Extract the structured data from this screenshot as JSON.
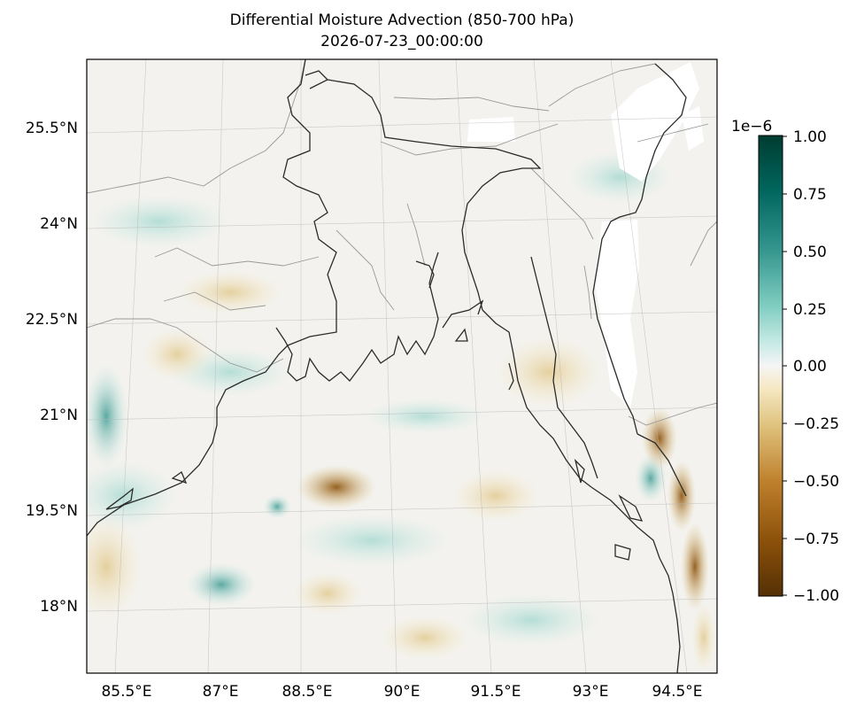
{
  "title": "Differential Moisture Advection (850-700 hPa)",
  "subtitle": "2026-07-23_00:00:00",
  "map": {
    "lon_ticks": [
      "85.5°E",
      "87°E",
      "88.5°E",
      "90°E",
      "91.5°E",
      "93°E",
      "94.5°E"
    ],
    "lat_ticks": [
      "25.5°N",
      "24°N",
      "22.5°N",
      "21°N",
      "19.5°N",
      "18°N"
    ],
    "gridlines": true,
    "colormap": "BrBG",
    "color_low": "#543005",
    "color_mid": "#f5f5f5",
    "color_high": "#003c30"
  },
  "colorbar": {
    "scale_label": "1e−6",
    "ticks": [
      "1.00",
      "0.75",
      "0.50",
      "0.25",
      "0.00",
      "−0.25",
      "−0.50",
      "−0.75",
      "−1.00"
    ],
    "range": [
      -1.0,
      1.0
    ]
  }
}
